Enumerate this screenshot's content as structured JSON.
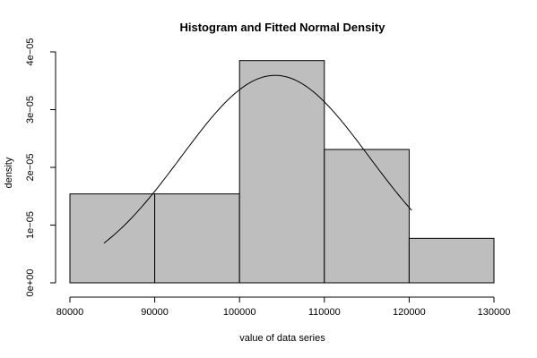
{
  "chart_data": {
    "type": "bar",
    "title": "Histogram and Fitted Normal Density",
    "xlabel": "value of data series",
    "ylabel": "density",
    "xlim": [
      80000,
      130000
    ],
    "ylim": [
      0,
      4e-05
    ],
    "bins": [
      {
        "x0": 80000,
        "x1": 90000,
        "density": 1.54e-05
      },
      {
        "x0": 90000,
        "x1": 100000,
        "density": 1.54e-05
      },
      {
        "x0": 100000,
        "x1": 110000,
        "density": 3.85e-05
      },
      {
        "x0": 110000,
        "x1": 120000,
        "density": 2.31e-05
      },
      {
        "x0": 120000,
        "x1": 130000,
        "density": 7.7e-06
      }
    ],
    "fitted_normal": {
      "mean": 104200,
      "sd": 11100,
      "x_min": 84000,
      "x_max": 120300
    },
    "x_ticks": [
      {
        "value": 80000,
        "label": "80000"
      },
      {
        "value": 90000,
        "label": "90000"
      },
      {
        "value": 100000,
        "label": "100000"
      },
      {
        "value": 110000,
        "label": "110000"
      },
      {
        "value": 120000,
        "label": "120000"
      },
      {
        "value": 130000,
        "label": "130000"
      }
    ],
    "y_ticks": [
      {
        "value": 0,
        "label": "0e+00"
      },
      {
        "value": 1e-05,
        "label": "1e−05"
      },
      {
        "value": 2e-05,
        "label": "2e−05"
      },
      {
        "value": 3e-05,
        "label": "3e−05"
      },
      {
        "value": 4e-05,
        "label": "4e−05"
      }
    ],
    "colors": {
      "bar_fill": "#bebebe",
      "stroke": "#000000",
      "background": "#ffffff"
    },
    "grid": false
  }
}
